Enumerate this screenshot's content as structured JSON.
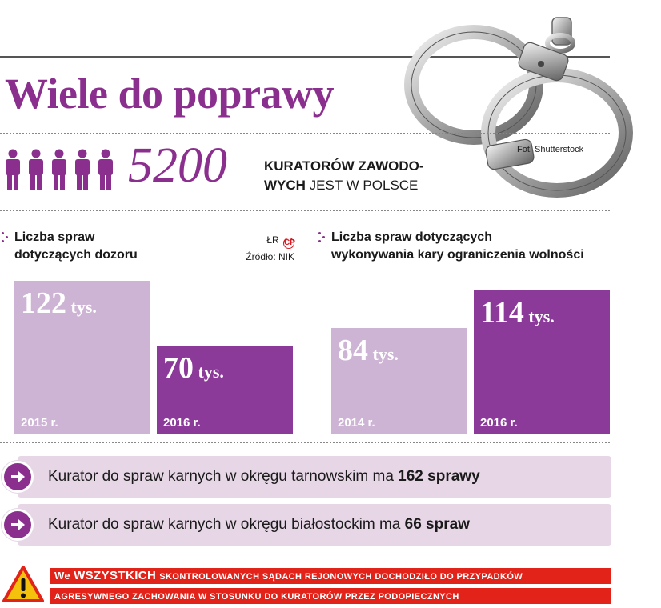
{
  "header": {
    "title": "Wiele do poprawy",
    "photo_credit": "Fot. Shutterstock"
  },
  "stat": {
    "number": "5200",
    "line1": "KURATORÓW ZAWODO-",
    "line2_bold": "WYCH",
    "line2_rest": " JEST W POLSCE",
    "icon": "people-icon"
  },
  "source": {
    "author": "ŁR",
    "badge": "CP",
    "label": "Źródło: NIK"
  },
  "chart_data": [
    {
      "type": "bar",
      "title": "Liczba spraw dotyczących dozoru",
      "title_lines": [
        "Liczba spraw",
        "dotyczących dozoru"
      ],
      "categories": [
        "2015 r.",
        "2016 r."
      ],
      "values": [
        122,
        70
      ],
      "value_labels": [
        "122",
        "70"
      ],
      "unit": "tys.",
      "colors": [
        "#cdb3d4",
        "#8b3a9a"
      ],
      "grid": false
    },
    {
      "type": "bar",
      "title": "Liczba spraw dotyczących wykonywania kary ograniczenia wolności",
      "title_lines": [
        "Liczba spraw dotyczących",
        "wykonywania kary ograniczenia wolności"
      ],
      "categories": [
        "2014 r.",
        "2016 r."
      ],
      "values": [
        84,
        114
      ],
      "value_labels": [
        "84",
        "114"
      ],
      "unit": "tys.",
      "colors": [
        "#cdb3d4",
        "#8b3a9a"
      ],
      "grid": false
    }
  ],
  "facts": [
    {
      "pre": "Kurator do spraw karnych w okręgu tarnowskim ma ",
      "bold": "162 sprawy"
    },
    {
      "pre": "Kurator do spraw karnych w okręgu białostockim ma ",
      "bold": "66 spraw"
    }
  ],
  "warning": {
    "line1_a": "We",
    "line1_b": "WSZYSTKICH",
    "line1_c": "skontrolowanych sądach rejonowych dochodziło do przypadków",
    "line2": "agresywnego zachowania w stosunku do kuratorów przez podopiecznych"
  },
  "colors": {
    "accent": "#8b2f8f",
    "bar_light": "#cdb3d4",
    "bar_dark": "#8b3a9a",
    "panel": "#e6d6e6",
    "warning": "#e2231a"
  }
}
